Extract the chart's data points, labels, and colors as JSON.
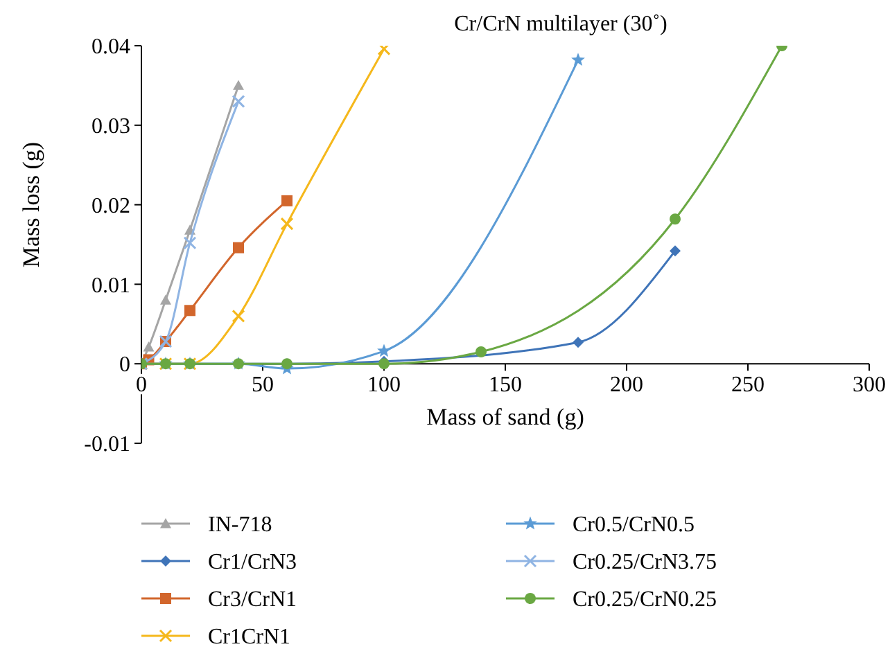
{
  "chart_data": {
    "type": "line",
    "title": "Cr/CrN multilayer (30˚)",
    "xlabel": "Mass of sand (g)",
    "ylabel": "Mass loss (g)",
    "xlim": [
      0,
      300
    ],
    "xticks": [
      0,
      50,
      100,
      150,
      200,
      250,
      300
    ],
    "ylim": [
      -0.01,
      0.04
    ],
    "yticks": [
      -0.01,
      0,
      0.01,
      0.02,
      0.03,
      0.04
    ],
    "grid": false,
    "legend": "bottom",
    "series": [
      {
        "name": "IN-718",
        "color": "#a5a5a5",
        "marker": "triangle",
        "x": [
          0,
          3,
          10,
          20,
          40
        ],
        "values": [
          0,
          0.0021,
          0.008,
          0.0168,
          0.035
        ]
      },
      {
        "name": "Cr1/CrN3",
        "color": "#3f74b8",
        "marker": "diamond",
        "x": [
          0,
          10,
          20,
          40,
          60,
          100,
          180,
          220
        ],
        "values": [
          0,
          0,
          0,
          0,
          0,
          0.0003,
          0.0027,
          0.0142
        ]
      },
      {
        "name": "Cr3/CrN1",
        "color": "#d2662c",
        "marker": "square",
        "x": [
          0,
          3,
          10,
          20,
          40,
          60
        ],
        "values": [
          0,
          0.0005,
          0.0028,
          0.0067,
          0.0146,
          0.0205
        ]
      },
      {
        "name": "Cr1CrN1",
        "color": "#f5b81c",
        "marker": "cross",
        "x": [
          0,
          10,
          20,
          40,
          60,
          100
        ],
        "values": [
          0,
          0,
          0,
          0.006,
          0.0176,
          0.0396
        ]
      },
      {
        "name": "Cr0.5/CrN0.5",
        "color": "#5b9bd5",
        "marker": "star",
        "x": [
          0,
          10,
          20,
          40,
          60,
          100,
          180
        ],
        "values": [
          0,
          0,
          0,
          0,
          -0.0006,
          0.0016,
          0.0382
        ]
      },
      {
        "name": "Cr0.25/CrN3.75",
        "color": "#8fb4e3",
        "marker": "cross",
        "x": [
          0,
          10,
          20,
          40
        ],
        "values": [
          0,
          0.0028,
          0.0152,
          0.033
        ]
      },
      {
        "name": "Cr0.25/CrN0.25",
        "color": "#6aa843",
        "marker": "circle",
        "x": [
          0,
          10,
          20,
          40,
          60,
          100,
          140,
          220,
          264
        ],
        "values": [
          0,
          0,
          0,
          0,
          0,
          0,
          0.0015,
          0.0182,
          0.04
        ]
      }
    ]
  }
}
